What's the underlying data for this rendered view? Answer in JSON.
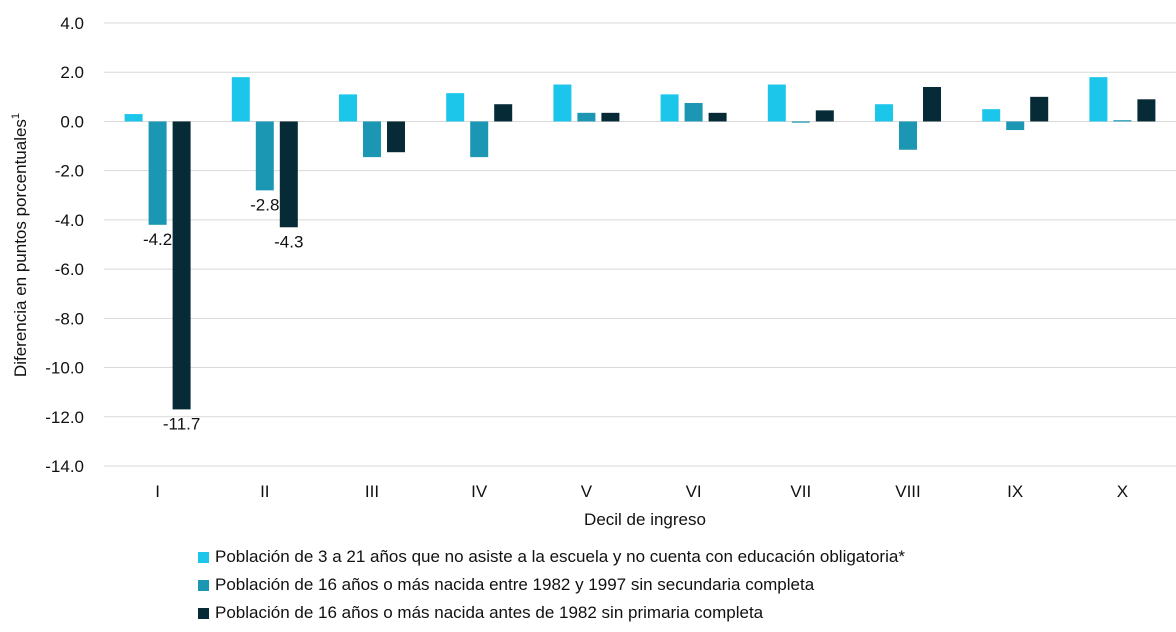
{
  "chart_data": {
    "type": "bar",
    "xlabel": "Decil de ingreso",
    "ylabel": "Diferencia en puntos porcentuales",
    "ylabel_superscript": "1",
    "ylim": [
      -14,
      4
    ],
    "yticks": [
      4,
      2,
      0,
      -2,
      -4,
      -6,
      -8,
      -10,
      -12,
      -14
    ],
    "ytick_labels": [
      "4.0",
      "2.0",
      "0.0",
      "-2.0",
      "-4.0",
      "-6.0",
      "-8.0",
      "-10.0",
      "-12.0",
      "-14.0"
    ],
    "grid": true,
    "legend_position": "bottom",
    "categories": [
      "I",
      "II",
      "III",
      "IV",
      "V",
      "VI",
      "VII",
      "VIII",
      "IX",
      "X"
    ],
    "series": [
      {
        "name": "Población de 3 a 21 años que no asiste a la escuela y no cuenta con educación obligatoria*",
        "color": "#1cc6ea",
        "values": [
          0.3,
          1.8,
          1.1,
          1.15,
          1.5,
          1.1,
          1.5,
          0.7,
          0.5,
          1.8
        ]
      },
      {
        "name": "Población de 16 años o más nacida entre 1982 y 1997 sin secundaria completa",
        "color": "#1b97b3",
        "values": [
          -4.2,
          -2.8,
          -1.45,
          -1.45,
          0.35,
          0.75,
          -0.05,
          -1.15,
          -0.35,
          0.05
        ]
      },
      {
        "name": "Población de 16 años o más nacida antes de 1982 sin primaria completa",
        "color": "#062b36",
        "values": [
          -11.7,
          -4.3,
          -1.25,
          0.7,
          0.35,
          0.35,
          0.45,
          1.4,
          1.0,
          0.9
        ]
      }
    ],
    "data_labels": [
      {
        "series": 1,
        "category": 0,
        "text": "-4.2"
      },
      {
        "series": 2,
        "category": 0,
        "text": "-11.7"
      },
      {
        "series": 1,
        "category": 1,
        "text": "-2.8"
      },
      {
        "series": 2,
        "category": 1,
        "text": "-4.3"
      }
    ]
  }
}
